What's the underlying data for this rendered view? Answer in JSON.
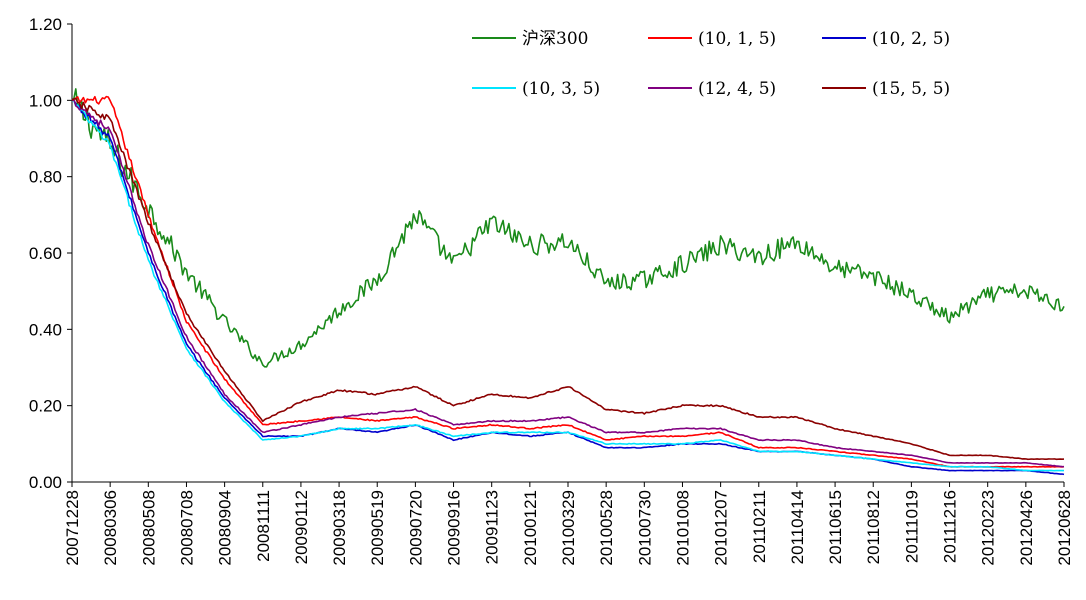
{
  "chart_data": {
    "type": "line",
    "title": "",
    "xlabel": "",
    "ylabel": "",
    "ylim": [
      0,
      1.2
    ],
    "yticks": [
      "0.00",
      "0.20",
      "0.40",
      "0.60",
      "0.80",
      "1.00",
      "1.20"
    ],
    "ytick_values": [
      0,
      0.2,
      0.4,
      0.6,
      0.8,
      1.0,
      1.2
    ],
    "categories": [
      "20071228",
      "20080306",
      "20080508",
      "20080708",
      "20080904",
      "20081111",
      "20090112",
      "20090318",
      "20090519",
      "20090720",
      "20090916",
      "20091123",
      "20100121",
      "20100329",
      "20100528",
      "20100730",
      "20101008",
      "20101207",
      "20110211",
      "20110414",
      "20110615",
      "20110812",
      "20111019",
      "20111216",
      "20120223",
      "20120426",
      "20120628"
    ],
    "grid": false,
    "legend_position": "top-right",
    "series": [
      {
        "name": "沪深300",
        "color": "#1a8a1a",
        "values": [
          1.0,
          0.88,
          0.72,
          0.55,
          0.42,
          0.31,
          0.36,
          0.45,
          0.53,
          0.7,
          0.57,
          0.68,
          0.62,
          0.63,
          0.52,
          0.53,
          0.57,
          0.62,
          0.59,
          0.63,
          0.56,
          0.54,
          0.49,
          0.43,
          0.49,
          0.5,
          0.46
        ]
      },
      {
        "name": "(10, 1, 5)",
        "color": "#ff0000",
        "values": [
          1.0,
          1.0,
          0.7,
          0.42,
          0.27,
          0.15,
          0.16,
          0.17,
          0.16,
          0.17,
          0.14,
          0.15,
          0.14,
          0.15,
          0.11,
          0.12,
          0.12,
          0.13,
          0.09,
          0.09,
          0.08,
          0.07,
          0.06,
          0.04,
          0.04,
          0.04,
          0.04
        ]
      },
      {
        "name": "(10, 2, 5)",
        "color": "#0000cc",
        "values": [
          1.0,
          0.9,
          0.6,
          0.36,
          0.22,
          0.12,
          0.12,
          0.14,
          0.13,
          0.15,
          0.11,
          0.13,
          0.12,
          0.13,
          0.09,
          0.09,
          0.1,
          0.1,
          0.08,
          0.08,
          0.07,
          0.06,
          0.04,
          0.03,
          0.03,
          0.03,
          0.02
        ]
      },
      {
        "name": "(10, 3, 5)",
        "color": "#00e5ff",
        "values": [
          1.0,
          0.88,
          0.58,
          0.35,
          0.21,
          0.11,
          0.12,
          0.14,
          0.14,
          0.15,
          0.12,
          0.13,
          0.13,
          0.13,
          0.1,
          0.1,
          0.1,
          0.11,
          0.08,
          0.08,
          0.07,
          0.06,
          0.05,
          0.04,
          0.04,
          0.03,
          0.03
        ]
      },
      {
        "name": "(12, 4, 5)",
        "color": "#800080",
        "values": [
          1.0,
          0.92,
          0.62,
          0.38,
          0.23,
          0.13,
          0.15,
          0.17,
          0.18,
          0.19,
          0.15,
          0.16,
          0.16,
          0.17,
          0.13,
          0.13,
          0.14,
          0.14,
          0.11,
          0.11,
          0.09,
          0.08,
          0.07,
          0.05,
          0.05,
          0.05,
          0.04
        ]
      },
      {
        "name": "(15, 5, 5)",
        "color": "#8b0000",
        "values": [
          1.0,
          0.95,
          0.68,
          0.44,
          0.29,
          0.16,
          0.21,
          0.24,
          0.23,
          0.25,
          0.2,
          0.23,
          0.22,
          0.25,
          0.19,
          0.18,
          0.2,
          0.2,
          0.17,
          0.17,
          0.14,
          0.12,
          0.1,
          0.07,
          0.07,
          0.06,
          0.06
        ]
      }
    ]
  }
}
